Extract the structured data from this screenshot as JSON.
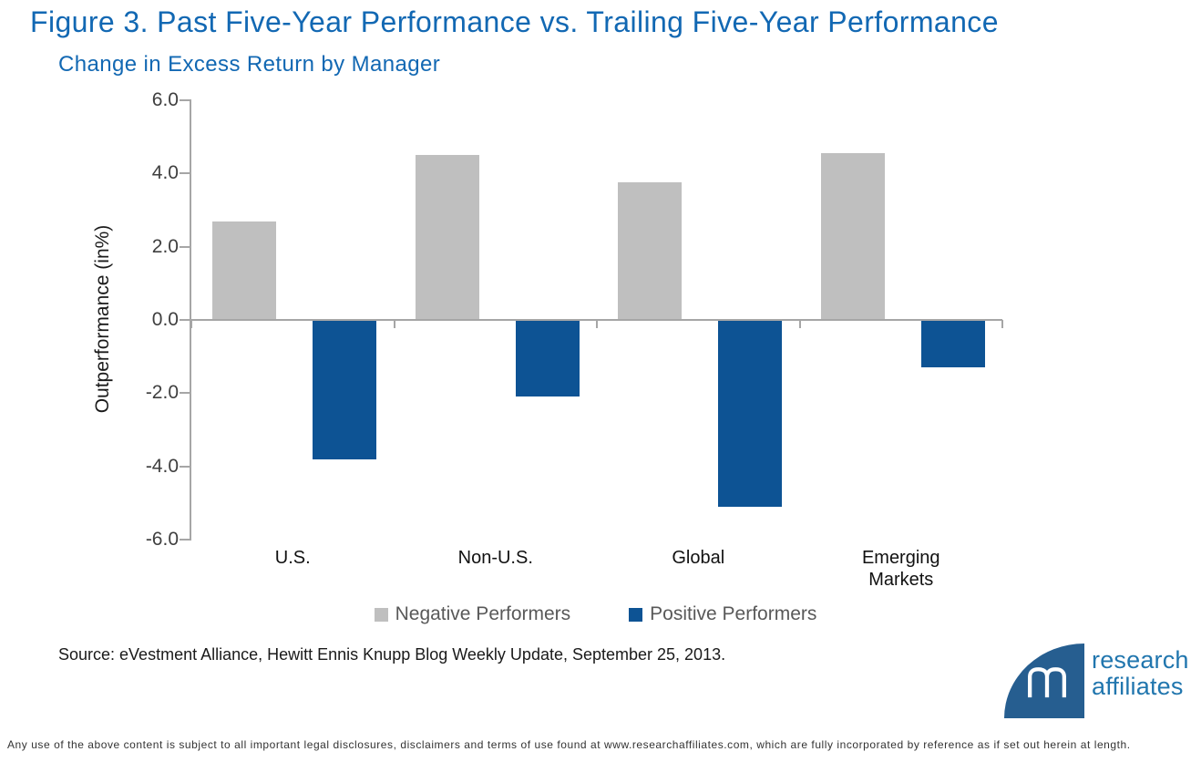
{
  "title": "Figure 3. Past Five-Year Performance vs. Trailing Five-Year Performance",
  "subtitle": "Change in Excess Return by Manager",
  "source_note": "Source: eVestment Alliance, Hewitt Ennis Knupp Blog Weekly Update, September 25, 2013.",
  "footer_disclaimer": "Any use of the above content is subject to all important legal disclosures, disclaimers and terms of use found at www.researchaffiliates.com, which are fully incorporated by reference as if set out herein at length.",
  "logo": {
    "word_line1": "research",
    "word_line2": "affiliates",
    "disc_color": "#265E90",
    "text_color": "#2176AE"
  },
  "colors": {
    "title_blue": "#1268B3",
    "bar_gray": "#BFBFBF",
    "bar_blue": "#0D5394",
    "axis_gray": "#A6A6A6",
    "legend_text": "#595959",
    "tick_label": "#3F3F3F"
  },
  "chart_data": {
    "type": "bar",
    "title": "Change in Excess Return by Manager",
    "categories": [
      "U.S.",
      "Non-U.S.",
      "Global",
      "Emerging Markets"
    ],
    "series": [
      {
        "name": "Negative Performers",
        "color": "#BFBFBF",
        "values": [
          2.7,
          4.5,
          3.75,
          4.55
        ]
      },
      {
        "name": "Positive Performers",
        "color": "#0D5394",
        "values": [
          -3.8,
          -2.1,
          -5.1,
          -1.3
        ]
      }
    ],
    "xlabel": "",
    "ylabel": "Outperformance (in%)",
    "ylim": [
      -6.0,
      6.0
    ],
    "ytick_step": 2.0,
    "ytick_labels": [
      "6.0",
      "4.0",
      "2.0",
      "0.0",
      "-2.0",
      "-4.0",
      "-6.0"
    ],
    "grid": false,
    "legend_position": "bottom"
  }
}
